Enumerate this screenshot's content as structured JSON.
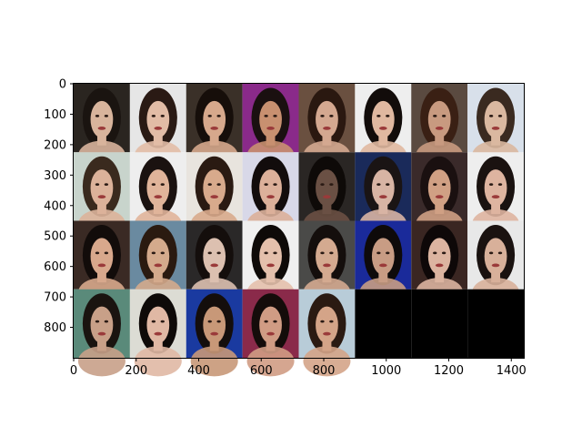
{
  "chart_data": {
    "type": "image",
    "xlim": [
      0,
      1440
    ],
    "ylim": [
      900,
      0
    ],
    "x_ticks": [
      0,
      200,
      400,
      600,
      800,
      1000,
      1200,
      1400
    ],
    "y_ticks": [
      0,
      100,
      200,
      300,
      400,
      500,
      600,
      700,
      800
    ],
    "grid": {
      "rows": 4,
      "cols": 8,
      "cell_width": 180,
      "cell_height": 225
    },
    "cells": [
      {
        "row": 0,
        "col": 0,
        "bg": "#2a2520",
        "hair": "#1a1410",
        "skin": "#d8b49c"
      },
      {
        "row": 0,
        "col": 1,
        "bg": "#e6e6e6",
        "hair": "#2a1a14",
        "skin": "#e2bca6"
      },
      {
        "row": 0,
        "col": 2,
        "bg": "#3a3028",
        "hair": "#160e0a",
        "skin": "#d6a88c"
      },
      {
        "row": 0,
        "col": 3,
        "bg": "#8a2a8a",
        "hair": "#1a1010",
        "skin": "#c89070"
      },
      {
        "row": 0,
        "col": 4,
        "bg": "#6a5040",
        "hair": "#2a1810",
        "skin": "#d4a890"
      },
      {
        "row": 0,
        "col": 5,
        "bg": "#eeeeee",
        "hair": "#120c0a",
        "skin": "#e0b8a0"
      },
      {
        "row": 0,
        "col": 6,
        "bg": "#5a4a40",
        "hair": "#3a2014",
        "skin": "#c89a80"
      },
      {
        "row": 0,
        "col": 7,
        "bg": "#d8e0ea",
        "hair": "#3a2a20",
        "skin": "#dab8a0"
      },
      {
        "row": 1,
        "col": 0,
        "bg": "#c8d4cc",
        "hair": "#3a2a1e",
        "skin": "#dcb29a"
      },
      {
        "row": 1,
        "col": 1,
        "bg": "#eeeeee",
        "hair": "#1a1210",
        "skin": "#e0b49a"
      },
      {
        "row": 1,
        "col": 2,
        "bg": "#e8e4de",
        "hair": "#2a1a12",
        "skin": "#d8aa8c"
      },
      {
        "row": 1,
        "col": 3,
        "bg": "#d8d8e8",
        "hair": "#120c0c",
        "skin": "#dcb09a"
      },
      {
        "row": 1,
        "col": 4,
        "bg": "#2a2624",
        "hair": "#0e0a08",
        "skin": "#6a5044"
      },
      {
        "row": 1,
        "col": 5,
        "bg": "#1a2a5a",
        "hair": "#1a1414",
        "skin": "#d8b4a4"
      },
      {
        "row": 1,
        "col": 6,
        "bg": "#3a2a2a",
        "hair": "#1a1010",
        "skin": "#d0a084"
      },
      {
        "row": 1,
        "col": 7,
        "bg": "#eeeeee",
        "hair": "#1a1210",
        "skin": "#deb4a0"
      },
      {
        "row": 2,
        "col": 0,
        "bg": "#3a2a24",
        "hair": "#120c0a",
        "skin": "#d8a88c"
      },
      {
        "row": 2,
        "col": 1,
        "bg": "#6a8aa0",
        "hair": "#2a1a10",
        "skin": "#d4aa8c"
      },
      {
        "row": 2,
        "col": 2,
        "bg": "#2a2828",
        "hair": "#140e0c",
        "skin": "#dcc0b0"
      },
      {
        "row": 2,
        "col": 3,
        "bg": "#f0f0f0",
        "hair": "#0e0a08",
        "skin": "#e4c0ac"
      },
      {
        "row": 2,
        "col": 4,
        "bg": "#4a4a48",
        "hair": "#140e0c",
        "skin": "#d4aa90"
      },
      {
        "row": 2,
        "col": 5,
        "bg": "#1a2a9a",
        "hair": "#0e0a0a",
        "skin": "#c89c84"
      },
      {
        "row": 2,
        "col": 6,
        "bg": "#3a2622",
        "hair": "#0e0808",
        "skin": "#dcb4a0"
      },
      {
        "row": 2,
        "col": 7,
        "bg": "#e8e8e8",
        "hair": "#1a1210",
        "skin": "#d8b09a"
      },
      {
        "row": 3,
        "col": 0,
        "bg": "#5a8a7a",
        "hair": "#1a1410",
        "skin": "#c8a088"
      },
      {
        "row": 3,
        "col": 1,
        "bg": "#dcdcd4",
        "hair": "#0e0a08",
        "skin": "#e0b8a4"
      },
      {
        "row": 3,
        "col": 2,
        "bg": "#1a3aa0",
        "hair": "#140e0c",
        "skin": "#c89878"
      },
      {
        "row": 3,
        "col": 3,
        "bg": "#8a2a4a",
        "hair": "#140c0a",
        "skin": "#d09c84"
      },
      {
        "row": 3,
        "col": 4,
        "bg": "#b8ccd8",
        "hair": "#2a1a12",
        "skin": "#d4a488"
      },
      {
        "row": 3,
        "col": 5,
        "bg": "#000000",
        "empty": true
      },
      {
        "row": 3,
        "col": 6,
        "bg": "#000000",
        "empty": true
      },
      {
        "row": 3,
        "col": 7,
        "bg": "#000000",
        "empty": true
      }
    ]
  }
}
